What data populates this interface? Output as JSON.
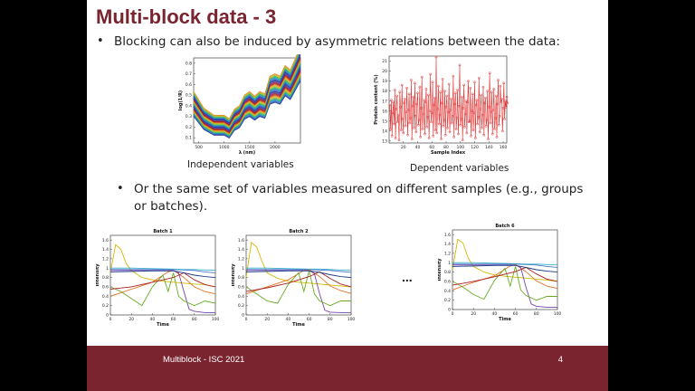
{
  "slide": {
    "title": "Multi-block data - 3",
    "bullets": [
      "Blocking can also be induced by asymmetric relations between the data:",
      "Or the same set of variables measured on different samples (e.g., groups or batches)."
    ],
    "captions": [
      "Independent variables",
      "Dependent variables"
    ],
    "ellipsis": "...",
    "footer": {
      "text": "Multiblock - ISC 2021",
      "page": "4"
    },
    "colors": {
      "accent": "#7a2430",
      "plot_red": "#e03030"
    }
  },
  "chart_data": [
    {
      "type": "line",
      "xlabel": "λ (nm)",
      "ylabel": "log(1/R)",
      "x_ticks": [
        "500",
        "1000",
        "1500",
        "2000"
      ],
      "y_ticks": [
        "0.1",
        "0.2",
        "0.3",
        "0.4",
        "0.5",
        "0.6",
        "0.7",
        "0.8"
      ],
      "xlim": [
        400,
        2500
      ],
      "ylim": [
        0.05,
        0.85
      ],
      "series_count": 40,
      "x": [
        400,
        600,
        800,
        1000,
        1100,
        1200,
        1300,
        1400,
        1500,
        1600,
        1700,
        1800,
        1900,
        2000,
        2100,
        2200,
        2300,
        2400,
        2500
      ],
      "base_curve": [
        0.42,
        0.28,
        0.22,
        0.22,
        0.19,
        0.27,
        0.3,
        0.39,
        0.42,
        0.38,
        0.42,
        0.4,
        0.55,
        0.57,
        0.55,
        0.64,
        0.6,
        0.7,
        0.8
      ]
    },
    {
      "type": "line",
      "xlabel": "Sample Index",
      "ylabel": "Protein content (%)",
      "x_ticks": [
        "20",
        "40",
        "60",
        "80",
        "100",
        "120",
        "140",
        "160"
      ],
      "y_ticks": [
        "13",
        "14",
        "15",
        "16",
        "17",
        "18",
        "19",
        "20",
        "21"
      ],
      "xlim": [
        0,
        165
      ],
      "ylim": [
        12.8,
        21.5
      ],
      "values": [
        16.6,
        14.2,
        17.1,
        13.5,
        15.8,
        16.9,
        14.7,
        18.1,
        13.3,
        16.2,
        17.5,
        14.9,
        15.6,
        13.1,
        17.9,
        16.4,
        14.1,
        18.6,
        15.2,
        13.8,
        16.8,
        17.2,
        14.5,
        15.9,
        18.3,
        13.6,
        16.1,
        17.7,
        14.8,
        15.3,
        19.1,
        13.2,
        16.5,
        17.4,
        14.3,
        18.8,
        15.5,
        13.9,
        16.7,
        17.8,
        14.6,
        15.1,
        18.4,
        13.4,
        16.3,
        19.4,
        14.2,
        15.7,
        17.1,
        13.7,
        16.9,
        18.2,
        14.4,
        15.4,
        17.6,
        13.3,
        16.0,
        19.7,
        14.9,
        15.8,
        18.9,
        13.5,
        16.6,
        17.3,
        14.1,
        21.4,
        13.8,
        16.2,
        18.5,
        14.7,
        15.6,
        17.9,
        13.2,
        16.8,
        19.2,
        14.5,
        15.1,
        18.0,
        13.6,
        16.4,
        17.5,
        14.3,
        15.9,
        18.7,
        13.9,
        16.1,
        17.2,
        14.8,
        15.5,
        19.5,
        13.4,
        16.7,
        17.8,
        14.2,
        15.3,
        18.1,
        13.7,
        16.5,
        20.6,
        14.6,
        15.2,
        17.4,
        13.1,
        16.3,
        18.6,
        14.4,
        15.7,
        17.0,
        13.8,
        16.9,
        19.0,
        14.9,
        15.0,
        18.3,
        13.5,
        16.0,
        17.7,
        14.1,
        15.8,
        18.9,
        13.3,
        16.6,
        17.1,
        14.7,
        15.4,
        19.3,
        13.9,
        16.2,
        17.6,
        14.3,
        15.6,
        18.4,
        13.6,
        16.8,
        17.3,
        14.5,
        15.1,
        18.0,
        13.2,
        16.4,
        19.8,
        14.8,
        15.9,
        17.9,
        13.7,
        16.1,
        18.2,
        14.2,
        15.3,
        17.5,
        13.4,
        16.7,
        19.1,
        14.6,
        15.5,
        18.5,
        16.9,
        17.2,
        14.0,
        16.3,
        18.8,
        15.2,
        17.0,
        16.4,
        17.4,
        16.8
      ]
    },
    {
      "type": "line",
      "title": "Batch 1",
      "xlabel": "Time",
      "ylabel": "Intensity",
      "x_ticks": [
        "0",
        "20",
        "40",
        "60",
        "80",
        "100"
      ],
      "y_ticks": [
        "0",
        "0.2",
        "0.4",
        "0.6",
        "0.8",
        "1",
        "1.2",
        "1.4",
        "1.6"
      ],
      "xlim": [
        0,
        100
      ],
      "ylim": [
        0,
        1.7
      ],
      "series": [
        {
          "name": "",
          "color": "#d4b800",
          "x": [
            0,
            5,
            10,
            15,
            20,
            30,
            40,
            50,
            60,
            70,
            80,
            90,
            100
          ],
          "y": [
            0.9,
            1.5,
            1.4,
            1.1,
            0.95,
            0.8,
            0.75,
            0.72,
            0.7,
            0.68,
            0.66,
            0.65,
            0.6
          ]
        },
        {
          "name": "",
          "color": "#4477cc",
          "x": [
            0,
            20,
            40,
            60,
            70,
            80,
            90,
            100
          ],
          "y": [
            0.97,
            0.97,
            0.97,
            0.97,
            0.96,
            0.95,
            0.92,
            0.9
          ]
        },
        {
          "name": "",
          "color": "#e07020",
          "x": [
            0,
            20,
            40,
            55,
            60,
            70,
            80,
            90,
            100
          ],
          "y": [
            0.4,
            0.55,
            0.7,
            0.92,
            0.95,
            0.8,
            0.6,
            0.5,
            0.45
          ]
        },
        {
          "name": "",
          "color": "#7744aa",
          "x": [
            0,
            20,
            40,
            60,
            65,
            70,
            75,
            80,
            90,
            100
          ],
          "y": [
            0.95,
            0.95,
            0.95,
            0.95,
            0.9,
            0.5,
            0.12,
            0.08,
            0.05,
            0.05
          ]
        },
        {
          "name": "",
          "color": "#66aa22",
          "x": [
            0,
            10,
            20,
            30,
            40,
            50,
            55,
            60,
            65,
            70,
            80,
            90,
            100
          ],
          "y": [
            0.6,
            0.5,
            0.35,
            0.2,
            0.6,
            0.85,
            0.5,
            0.9,
            0.4,
            0.3,
            0.2,
            0.3,
            0.25
          ]
        },
        {
          "name": "",
          "color": "#33aacc",
          "x": [
            0,
            20,
            40,
            60,
            70,
            80,
            90,
            100
          ],
          "y": [
            1.0,
            1.0,
            0.99,
            0.98,
            0.97,
            0.97,
            0.96,
            0.96
          ]
        },
        {
          "name": "",
          "color": "#aa2222",
          "x": [
            0,
            20,
            40,
            60,
            70,
            80,
            90,
            100
          ],
          "y": [
            0.55,
            0.6,
            0.7,
            0.8,
            0.9,
            0.75,
            0.65,
            0.6
          ]
        },
        {
          "name": "",
          "color": "#1a3a88",
          "x": [
            0,
            20,
            40,
            60,
            70,
            80,
            90,
            100
          ],
          "y": [
            0.92,
            0.93,
            0.94,
            0.94,
            0.9,
            0.85,
            0.82,
            0.8
          ]
        }
      ]
    },
    {
      "type": "line",
      "title": "Batch 2",
      "xlabel": "Time",
      "ylabel": "Intensity",
      "x_ticks": [
        "0",
        "20",
        "40",
        "60",
        "80",
        "100"
      ],
      "y_ticks": [
        "0",
        "0.2",
        "0.4",
        "0.6",
        "0.8",
        "1",
        "1.2",
        "1.4",
        "1.6"
      ],
      "xlim": [
        0,
        100
      ],
      "ylim": [
        0,
        1.7
      ],
      "series": [
        {
          "name": "",
          "color": "#d4b800",
          "x": [
            0,
            5,
            10,
            15,
            20,
            30,
            40,
            50,
            60,
            70,
            80,
            90,
            100
          ],
          "y": [
            0.8,
            1.55,
            1.45,
            1.15,
            0.9,
            0.78,
            0.72,
            0.7,
            0.68,
            0.66,
            0.64,
            0.62,
            0.6
          ]
        },
        {
          "name": "",
          "color": "#4477cc",
          "x": [
            0,
            20,
            40,
            60,
            70,
            80,
            90,
            100
          ],
          "y": [
            0.97,
            0.97,
            0.97,
            0.97,
            0.96,
            0.95,
            0.93,
            0.91
          ]
        },
        {
          "name": "",
          "color": "#e07020",
          "x": [
            0,
            20,
            40,
            55,
            60,
            70,
            80,
            90,
            100
          ],
          "y": [
            0.45,
            0.6,
            0.75,
            0.95,
            0.97,
            0.82,
            0.62,
            0.52,
            0.46
          ]
        },
        {
          "name": "",
          "color": "#7744aa",
          "x": [
            0,
            20,
            40,
            60,
            65,
            70,
            75,
            80,
            90,
            100
          ],
          "y": [
            0.95,
            0.95,
            0.95,
            0.95,
            0.88,
            0.45,
            0.1,
            0.06,
            0.05,
            0.05
          ]
        },
        {
          "name": "",
          "color": "#66aa22",
          "x": [
            0,
            10,
            20,
            30,
            40,
            50,
            55,
            60,
            65,
            70,
            80,
            90,
            100
          ],
          "y": [
            0.6,
            0.45,
            0.3,
            0.25,
            0.65,
            0.9,
            0.5,
            0.95,
            0.45,
            0.3,
            0.2,
            0.3,
            0.3
          ]
        },
        {
          "name": "",
          "color": "#33aacc",
          "x": [
            0,
            20,
            40,
            60,
            70,
            80,
            90,
            100
          ],
          "y": [
            1.0,
            1.0,
            0.99,
            0.98,
            0.98,
            0.97,
            0.96,
            0.96
          ]
        },
        {
          "name": "",
          "color": "#aa2222",
          "x": [
            0,
            20,
            40,
            60,
            70,
            80,
            90,
            100
          ],
          "y": [
            0.5,
            0.58,
            0.68,
            0.82,
            0.92,
            0.78,
            0.66,
            0.6
          ]
        },
        {
          "name": "",
          "color": "#1a3a88",
          "x": [
            0,
            20,
            40,
            60,
            70,
            80,
            90,
            100
          ],
          "y": [
            0.92,
            0.93,
            0.94,
            0.94,
            0.91,
            0.86,
            0.82,
            0.8
          ]
        }
      ]
    },
    {
      "type": "line",
      "title": "Batch 6",
      "xlabel": "Time",
      "ylabel": "Intensity",
      "x_ticks": [
        "0",
        "20",
        "40",
        "60",
        "80",
        "100"
      ],
      "y_ticks": [
        "0",
        "0.2",
        "0.4",
        "0.6",
        "0.8",
        "1",
        "1.2",
        "1.4",
        "1.6"
      ],
      "xlim": [
        0,
        100
      ],
      "ylim": [
        0,
        1.7
      ],
      "series": [
        {
          "name": "",
          "color": "#d4b800",
          "x": [
            0,
            5,
            10,
            15,
            20,
            30,
            40,
            50,
            60,
            70,
            80,
            90,
            100
          ],
          "y": [
            0.85,
            1.5,
            1.42,
            1.1,
            0.92,
            0.8,
            0.74,
            0.71,
            0.69,
            0.67,
            0.65,
            0.63,
            0.6
          ]
        },
        {
          "name": "",
          "color": "#4477cc",
          "x": [
            0,
            20,
            40,
            60,
            70,
            80,
            90,
            100
          ],
          "y": [
            0.97,
            0.97,
            0.97,
            0.97,
            0.96,
            0.95,
            0.92,
            0.9
          ]
        },
        {
          "name": "",
          "color": "#e07020",
          "x": [
            0,
            20,
            40,
            55,
            60,
            70,
            80,
            90,
            100
          ],
          "y": [
            0.42,
            0.58,
            0.72,
            0.93,
            0.96,
            0.81,
            0.61,
            0.5,
            0.45
          ]
        },
        {
          "name": "",
          "color": "#7744aa",
          "x": [
            0,
            20,
            40,
            60,
            65,
            70,
            75,
            80,
            90,
            100
          ],
          "y": [
            0.95,
            0.95,
            0.95,
            0.95,
            0.9,
            0.48,
            0.12,
            0.07,
            0.05,
            0.05
          ]
        },
        {
          "name": "",
          "color": "#66aa22",
          "x": [
            0,
            10,
            20,
            30,
            40,
            50,
            55,
            60,
            65,
            70,
            80,
            90,
            100
          ],
          "y": [
            0.6,
            0.48,
            0.32,
            0.22,
            0.62,
            0.88,
            0.5,
            0.92,
            0.42,
            0.3,
            0.2,
            0.28,
            0.28
          ]
        },
        {
          "name": "",
          "color": "#33aacc",
          "x": [
            0,
            20,
            40,
            60,
            70,
            80,
            90,
            100
          ],
          "y": [
            1.0,
            1.0,
            0.99,
            0.98,
            0.97,
            0.97,
            0.96,
            0.96
          ]
        },
        {
          "name": "",
          "color": "#aa2222",
          "x": [
            0,
            20,
            40,
            60,
            70,
            80,
            90,
            100
          ],
          "y": [
            0.52,
            0.6,
            0.7,
            0.81,
            0.9,
            0.76,
            0.65,
            0.6
          ]
        },
        {
          "name": "",
          "color": "#1a3a88",
          "x": [
            0,
            20,
            40,
            60,
            70,
            80,
            90,
            100
          ],
          "y": [
            0.92,
            0.93,
            0.94,
            0.94,
            0.9,
            0.85,
            0.82,
            0.8
          ]
        }
      ]
    }
  ]
}
